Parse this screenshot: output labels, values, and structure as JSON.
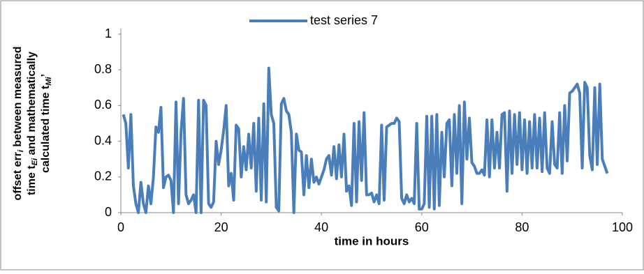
{
  "chart_data": {
    "type": "line",
    "x_label": "time in hours",
    "y_label_lines": [
      "offset err",
      "i",
      " between measured",
      "time t",
      "Ei",
      " and mathematically",
      "calculated time t",
      "Mi",
      "’"
    ],
    "x": [
      0.5,
      1,
      1.5,
      2,
      2.5,
      3,
      3.5,
      4,
      4.5,
      5,
      5.5,
      6,
      6.5,
      7,
      7.5,
      8,
      8.5,
      9,
      9.5,
      10,
      10.5,
      11,
      11.5,
      12,
      12.5,
      13,
      13.5,
      14,
      14.5,
      15,
      15.5,
      16,
      16.5,
      17,
      17.5,
      18,
      18.5,
      19,
      19.5,
      20,
      20.5,
      21,
      21.5,
      22,
      22.5,
      23,
      23.5,
      24,
      24.5,
      25,
      25.5,
      26,
      26.5,
      27,
      27.5,
      28,
      28.5,
      29,
      29.5,
      30,
      30.5,
      31,
      31.5,
      32,
      32.5,
      33,
      33.5,
      34,
      34.5,
      35,
      35.5,
      36,
      36.5,
      37,
      37.5,
      38,
      38.5,
      39,
      39.5,
      40,
      40.5,
      41,
      41.5,
      42,
      42.5,
      43,
      43.5,
      44,
      44.5,
      45,
      45.5,
      46,
      46.5,
      47,
      47.5,
      48,
      48.5,
      49,
      49.5,
      50,
      50.5,
      51,
      51.5,
      52,
      52.5,
      53,
      53.5,
      54,
      54.5,
      55,
      55.5,
      56,
      56.5,
      57,
      57.5,
      58,
      58.5,
      59,
      59.5,
      60,
      60.5,
      61,
      61.5,
      62,
      62.5,
      63,
      63.5,
      64,
      64.5,
      65,
      65.5,
      66,
      66.5,
      67,
      67.5,
      68,
      68.5,
      69,
      69.5,
      70,
      70.5,
      71,
      71.5,
      72,
      72.5,
      73,
      73.5,
      74,
      74.5,
      75,
      75.5,
      76,
      76.5,
      77,
      77.5,
      78,
      78.5,
      79,
      79.5,
      80,
      80.5,
      81,
      81.5,
      82,
      82.5,
      83,
      83.5,
      84,
      84.5,
      85,
      85.5,
      86,
      86.5,
      87,
      87.5,
      88,
      88.5,
      89,
      89.5,
      90,
      90.5,
      91,
      91.5,
      92,
      92.5,
      93,
      93.5,
      94,
      94.5,
      95,
      95.5,
      96,
      97
    ],
    "series": [
      {
        "name": "test series 7",
        "color": "#4a7ebb",
        "values": [
          0.55,
          0.5,
          0.25,
          0.55,
          0.15,
          0.05,
          0,
          0.17,
          0.05,
          0,
          0.15,
          0.05,
          0.2,
          0.48,
          0.45,
          0.59,
          0.14,
          0.2,
          0.21,
          0.18,
          0,
          0.62,
          0.05,
          0.45,
          0.64,
          0.1,
          0.05,
          0.07,
          0.1,
          0,
          0.63,
          0,
          0.63,
          0.6,
          0.05,
          0.03,
          0.06,
          0.4,
          0.27,
          0.35,
          0.46,
          0.6,
          0.15,
          0.22,
          0.07,
          0.49,
          0.47,
          0.2,
          0.37,
          0.24,
          0.44,
          0.25,
          0.5,
          0.12,
          0.53,
          0.07,
          0.61,
          0.06,
          0.81,
          0.55,
          0.5,
          0.03,
          0.01,
          0.61,
          0.64,
          0.57,
          0.55,
          0.45,
          0,
          0.44,
          0.35,
          0.34,
          0.1,
          0.32,
          0.14,
          0.3,
          0.17,
          0.2,
          0.16,
          0.2,
          0.24,
          0.3,
          0.32,
          0.21,
          0.37,
          0.19,
          0.38,
          0.2,
          0.44,
          0.12,
          0.15,
          0.04,
          0.5,
          0.06,
          0.51,
          0.18,
          0.56,
          0.1,
          0.1,
          0.11,
          0.06,
          0.1,
          0.05,
          0.49,
          0.07,
          0.48,
          0.49,
          0.5,
          0.5,
          0.53,
          0.51,
          0.08,
          0.05,
          0.1,
          0.06,
          0.08,
          0.05,
          0.5,
          0.02,
          0.02,
          0.05,
          0.54,
          0.03,
          0.54,
          0.02,
          0.55,
          0.04,
          0.45,
          0.2,
          0.5,
          0.52,
          0.15,
          0.55,
          0.22,
          0.6,
          0.05,
          0.62,
          0.3,
          0.53,
          0.28,
          0.26,
          0.22,
          0.22,
          0.24,
          0.21,
          0.52,
          0.2,
          0.52,
          0.25,
          0.45,
          0.25,
          0.55,
          0.56,
          0.12,
          0.57,
          0.22,
          0.55,
          0.27,
          0.56,
          0.24,
          0.52,
          0.22,
          0.51,
          0.25,
          0.55,
          0.25,
          0.53,
          0.23,
          0.56,
          0.25,
          0.22,
          0.51,
          0.27,
          0.25,
          0.56,
          0.22,
          0.6,
          0.29,
          0.67,
          0.68,
          0.7,
          0.72,
          0.67,
          0.25,
          0.73,
          0.7,
          0.32,
          0.24,
          0.7,
          0.27,
          0.72,
          0.3,
          0.22
        ]
      }
    ],
    "xlim": [
      0,
      100
    ],
    "xticks": [
      0,
      20,
      40,
      60,
      80,
      100
    ],
    "ylim": [
      0,
      1
    ],
    "yticks": [
      0,
      0.2,
      0.4,
      0.6,
      0.8,
      1
    ],
    "legend": "top"
  }
}
